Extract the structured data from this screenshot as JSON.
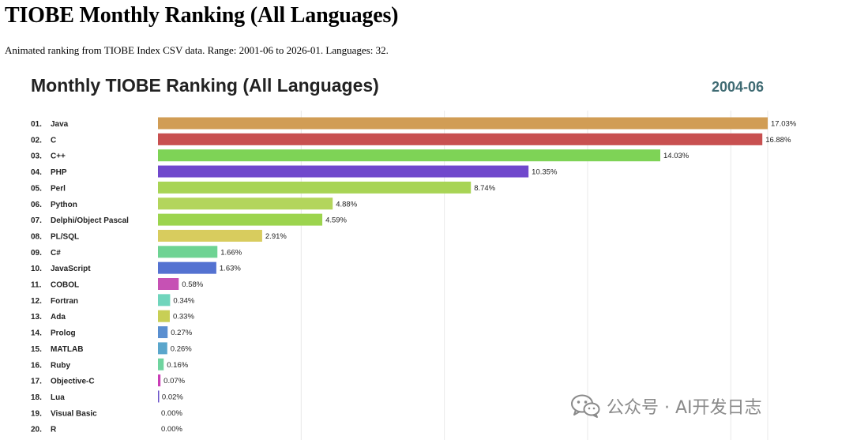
{
  "page": {
    "title": "TIOBE Monthly Ranking (All Languages)",
    "description": "Animated ranking from TIOBE Index CSV data. Range: 2001-06 to 2026-01. Languages: 32."
  },
  "watermark": {
    "icon": "wechat-icon",
    "text": "公众号 · AI开发日志"
  },
  "chart_data": {
    "type": "bar",
    "orientation": "horizontal",
    "title": "Monthly TIOBE Ranking (All Languages)",
    "period_label": "2004-06",
    "xlabel": "",
    "ylabel": "",
    "xlim": [
      0,
      17.03
    ],
    "grid": true,
    "legend": "none",
    "value_suffix": "%",
    "ranks": [
      "01.",
      "02.",
      "03.",
      "04.",
      "05.",
      "06.",
      "07.",
      "08.",
      "09.",
      "10.",
      "11.",
      "12.",
      "13.",
      "14.",
      "15.",
      "16.",
      "17.",
      "18.",
      "19.",
      "20."
    ],
    "categories": [
      "Java",
      "C",
      "C++",
      "PHP",
      "Perl",
      "Python",
      "Delphi/Object Pascal",
      "PL/SQL",
      "C#",
      "JavaScript",
      "COBOL",
      "Fortran",
      "Ada",
      "Prolog",
      "MATLAB",
      "Ruby",
      "Objective-C",
      "Lua",
      "Visual Basic",
      "R"
    ],
    "values": [
      17.03,
      16.88,
      14.03,
      10.35,
      8.74,
      4.88,
      4.59,
      2.91,
      1.66,
      1.63,
      0.58,
      0.34,
      0.33,
      0.27,
      0.26,
      0.16,
      0.07,
      0.02,
      0.0,
      0.0
    ],
    "value_labels": [
      "17.03%",
      "16.88%",
      "14.03%",
      "10.35%",
      "8.74%",
      "4.88%",
      "4.59%",
      "2.91%",
      "1.66%",
      "1.63%",
      "0.58%",
      "0.34%",
      "0.33%",
      "0.27%",
      "0.26%",
      "0.16%",
      "0.07%",
      "0.02%",
      "0.00%",
      "0.00%"
    ],
    "colors": [
      "#d19d55",
      "#c85050",
      "#7ed356",
      "#7048cc",
      "#a8d455",
      "#b3d55c",
      "#9cd44e",
      "#d8cc5e",
      "#6ed393",
      "#5472d1",
      "#c651b4",
      "#70d5bc",
      "#c8cf55",
      "#5a8fd0",
      "#5aa6cc",
      "#6fd49f",
      "#c93db6",
      "#6a52c8",
      "#6a6ad0",
      "#4c7bd0"
    ],
    "title_color": "#222222",
    "period_color": "#3f6b73",
    "grid_color": "#e9e9e9"
  }
}
